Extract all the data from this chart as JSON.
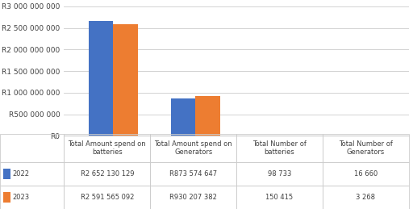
{
  "categories": [
    "Total Amount spend on\nbatteries",
    "Total Amount spend on\nGenerators",
    "Total Number of\nbatteries",
    "Total Number of\nGenerators"
  ],
  "series": {
    "2022": [
      2652130129,
      873574647,
      98733,
      16660
    ],
    "2023": [
      2591565092,
      930207382,
      150415,
      3268
    ]
  },
  "colors": {
    "2022": "#4472C4",
    "2023": "#ED7D31"
  },
  "ylim": [
    0,
    3000000000
  ],
  "ytick_values": [
    0,
    500000000,
    1000000000,
    1500000000,
    2000000000,
    2500000000,
    3000000000
  ],
  "ytick_labels": [
    "R0",
    "R500 000 000",
    "R1 000 000 000",
    "R1 500 000 000",
    "R2 000 000 000",
    "R2 500 000 000",
    "R3 000 000 000"
  ],
  "legend_labels": [
    "2022",
    "2023"
  ],
  "table_data": {
    "row_labels": [
      "2022",
      "2023"
    ],
    "col_labels": [
      "Total Amount spend on\nbatteries",
      "Total Amount spend on\nGenerators",
      "Total Number of\nbatteries",
      "Total Number of\nGenerators"
    ],
    "values": [
      [
        "R2 652 130 129",
        "R873 574 647",
        "98 733",
        "16 660"
      ],
      [
        "R2 591 565 092",
        "R930 207 382",
        "150 415",
        "3 268"
      ]
    ]
  },
  "bar_width": 0.3,
  "background_color": "#FFFFFF",
  "grid_color": "#CCCCCC",
  "text_color": "#404040",
  "font_size": 6.5,
  "table_font_size": 6.0
}
